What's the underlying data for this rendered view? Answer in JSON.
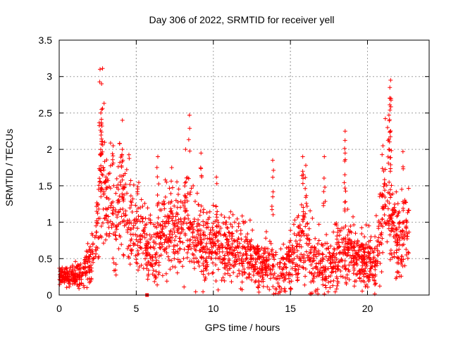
{
  "chart_data": {
    "type": "scatter",
    "title": "Day 306 of 2022, SRMTID for receiver yell",
    "xlabel": "GPS time / hours",
    "ylabel": "SRMTID / TECUs",
    "xlim": [
      0,
      24
    ],
    "ylim": [
      0,
      3.5
    ],
    "xticks": [
      0,
      5,
      10,
      15,
      20
    ],
    "xtick_labels": [
      "0",
      "5",
      "10",
      "15",
      "20"
    ],
    "yticks": [
      0,
      0.5,
      1,
      1.5,
      2,
      2.5,
      3,
      3.5
    ],
    "ytick_labels": [
      "0",
      "0.5",
      "1",
      "1.5",
      "2",
      "2.5",
      "3",
      "3.5"
    ],
    "grid": true,
    "marker": "+",
    "color": "#ff0000",
    "point_count": 2200,
    "envelope": {
      "x": [
        0,
        0.5,
        1,
        1.5,
        2,
        2.5,
        2.8,
        3.2,
        3.6,
        4.0,
        4.3,
        4.8,
        5.3,
        5.8,
        6.3,
        6.8,
        7.3,
        7.8,
        8.2,
        8.6,
        9.0,
        9.5,
        10.0,
        10.5,
        11.0,
        11.5,
        12.0,
        12.5,
        13.0,
        13.5,
        13.8,
        14.2,
        14.6,
        15.0,
        15.5,
        15.9,
        16.3,
        16.8,
        17.3,
        17.8,
        18.3,
        18.6,
        19.0,
        19.5,
        20.0,
        20.5,
        20.9,
        21.2,
        21.5,
        21.9,
        22.3,
        22.7
      ],
      "center": [
        0.3,
        0.25,
        0.25,
        0.3,
        0.4,
        0.9,
        1.6,
        1.2,
        0.9,
        1.4,
        1.1,
        0.9,
        0.9,
        0.7,
        0.6,
        0.8,
        0.9,
        0.8,
        1.1,
        0.8,
        0.7,
        0.6,
        0.7,
        0.6,
        0.6,
        0.6,
        0.55,
        0.5,
        0.4,
        0.45,
        0.5,
        0.25,
        0.3,
        0.5,
        0.6,
        0.8,
        0.5,
        0.4,
        0.4,
        0.5,
        0.55,
        0.55,
        0.55,
        0.5,
        0.45,
        0.5,
        0.9,
        1.3,
        1.2,
        0.7,
        0.8,
        0.9
      ],
      "spread": [
        0.1,
        0.08,
        0.1,
        0.12,
        0.2,
        0.45,
        0.8,
        0.5,
        0.4,
        0.55,
        0.45,
        0.4,
        0.35,
        0.3,
        0.3,
        0.35,
        0.35,
        0.35,
        0.45,
        0.35,
        0.35,
        0.3,
        0.3,
        0.3,
        0.3,
        0.3,
        0.28,
        0.25,
        0.2,
        0.22,
        0.35,
        0.18,
        0.2,
        0.3,
        0.3,
        0.4,
        0.3,
        0.25,
        0.25,
        0.28,
        0.3,
        0.3,
        0.28,
        0.25,
        0.25,
        0.3,
        0.5,
        0.6,
        0.55,
        0.35,
        0.4,
        0.4
      ]
    },
    "peaks": [
      {
        "x": 2.65,
        "y": 3.1
      },
      {
        "x": 2.75,
        "y": 2.9
      },
      {
        "x": 2.7,
        "y": 2.5
      },
      {
        "x": 4.1,
        "y": 2.4
      },
      {
        "x": 4.1,
        "y": 2.0
      },
      {
        "x": 8.45,
        "y": 2.47
      },
      {
        "x": 8.2,
        "y": 2.0
      },
      {
        "x": 9.2,
        "y": 1.95
      },
      {
        "x": 13.85,
        "y": 1.85
      },
      {
        "x": 15.8,
        "y": 1.9
      },
      {
        "x": 17.2,
        "y": 1.9
      },
      {
        "x": 18.55,
        "y": 2.25
      },
      {
        "x": 18.55,
        "y": 1.95
      },
      {
        "x": 21.3,
        "y": 2.3
      },
      {
        "x": 21.5,
        "y": 2.95
      },
      {
        "x": 21.45,
        "y": 2.85
      },
      {
        "x": 21.45,
        "y": 2.7
      },
      {
        "x": 22.3,
        "y": 1.97
      },
      {
        "x": 3.5,
        "y": 2.05
      },
      {
        "x": 6.4,
        "y": 1.9
      },
      {
        "x": 7.3,
        "y": 1.75
      },
      {
        "x": 10.2,
        "y": 1.62
      },
      {
        "x": 16.0,
        "y": 1.78
      },
      {
        "x": 21.0,
        "y": 2.05
      }
    ],
    "zero_markers": [
      {
        "x": 5.7,
        "y": 0.0
      }
    ]
  }
}
